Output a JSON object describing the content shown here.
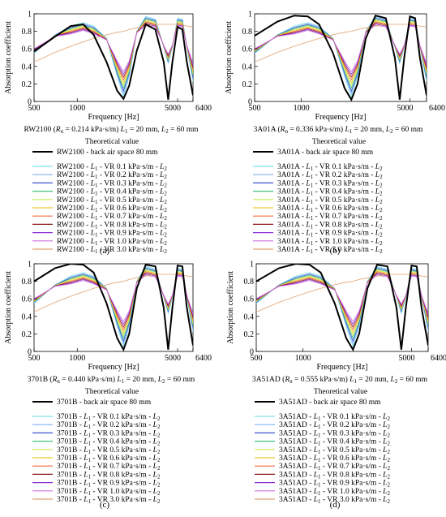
{
  "figure": {
    "panel_labels": [
      "(a)",
      "(b)",
      "(c)",
      "(d)"
    ],
    "legend_heading": "Theoretical value",
    "sweep_colors": [
      "#7fe3ea",
      "#80b4f2",
      "#3f51d4",
      "#41c57a",
      "#c9ec5a",
      "#efc92c",
      "#f06b3d",
      "#8e1f1f",
      "#8b2fd8",
      "#d16fe2",
      "#e3a06d"
    ]
  },
  "chart_data": [
    {
      "type": "line",
      "panel": "(a)",
      "material": "RW2100",
      "xlabel": "Frequency [Hz]",
      "ylabel": "Absorption coefficient",
      "xscale": "log",
      "xlim": [
        500,
        6400
      ],
      "ylim": [
        0,
        1
      ],
      "x_ticks": [
        "500",
        "1000",
        "5000",
        "6400"
      ],
      "y_ticks": [
        "0",
        "0.2",
        "0.4",
        "0.6",
        "0.8",
        "1"
      ],
      "grid": false,
      "legend_placement": "below",
      "caption_prefix": "RW2100 (",
      "rn_value": " = 0.214 kPa·s/m)",
      "caption_lengths": "L",
      "caption_tail": " = 20 mm, ",
      "caption_l2": " = 60 mm",
      "theory_label": "RW2100 - back air space 80 mm",
      "series_labels": [
        {
          "pre": "RW2100 - ",
          "mid": " - VR 0.1 kPa·s/m - "
        },
        {
          "pre": "RW2100 - ",
          "mid": " - VR 0.2 kPa·s/m - "
        },
        {
          "pre": "RW2100 - ",
          "mid": " - VR 0.3 kPa·s/m - "
        },
        {
          "pre": "RW2100 - ",
          "mid": " - VR 0.4 kPa·s/m - "
        },
        {
          "pre": "RW2100 - ",
          "mid": " - VR 0.5 kPa·s/m - "
        },
        {
          "pre": "RW2100 - ",
          "mid": " - VR 0.6 kPa·s/m - "
        },
        {
          "pre": "RW2100 - ",
          "mid": " - VR 0.7 kPa·s/m - "
        },
        {
          "pre": "RW2100 - ",
          "mid": " - VR 0.8 kPa·s/m - "
        },
        {
          "pre": "RW2100 - ",
          "mid": " - VR 0.9 kPa·s/m - "
        },
        {
          "pre": "RW2100 - ",
          "mid": " - VR 1.0 kPa·s/m - "
        },
        {
          "pre": "RW2100 - ",
          "mid": " - VR 3.0 kPa·s/m - "
        }
      ],
      "theory_curve": {
        "x": [
          500,
          700,
          900,
          1100,
          1300,
          1600,
          1900,
          2100,
          2300,
          2600,
          3000,
          3500,
          4000,
          4300,
          4600,
          5000,
          5400,
          5800,
          6400
        ],
        "y": [
          0.57,
          0.74,
          0.86,
          0.88,
          0.76,
          0.45,
          0.12,
          0.03,
          0.18,
          0.58,
          0.88,
          0.82,
          0.45,
          0.02,
          0.45,
          0.85,
          0.82,
          0.45,
          0.07
        ]
      }
    },
    {
      "type": "line",
      "panel": "(b)",
      "material": "3A01A",
      "xlabel": "Frequency [Hz]",
      "ylabel": "Absorption coefficient",
      "xscale": "log",
      "xlim": [
        500,
        6400
      ],
      "ylim": [
        0,
        1
      ],
      "x_ticks": [
        "500",
        "1000",
        "5000",
        "6400"
      ],
      "y_ticks": [
        "0",
        "0.2",
        "0.4",
        "0.6",
        "0.8",
        "1"
      ],
      "grid": false,
      "legend_placement": "below",
      "caption_prefix": "3A01A (",
      "rn_value": " = 0.336 kPa·s/m)",
      "caption_lengths": "L",
      "caption_tail": " = 20 mm, ",
      "caption_l2": " = 60 mm",
      "theory_label": "3A01A - back air space 80 mm",
      "series_labels": [
        {
          "pre": "3A01A - ",
          "mid": " - VR 0.1 kPa·s/m - "
        },
        {
          "pre": "3A01A - ",
          "mid": " - VR 0.2 kPa·s/m - "
        },
        {
          "pre": "3A01A - ",
          "mid": " - VR 0.3 kPa·s/m - "
        },
        {
          "pre": "3A01A - ",
          "mid": " - VR 0.4 kPa·s/m - "
        },
        {
          "pre": "3A01A - ",
          "mid": " - VR 0.5 kPa·s/m - "
        },
        {
          "pre": "3A01A - ",
          "mid": " - VR 0.6 kPa·s/m - "
        },
        {
          "pre": "3A01A - ",
          "mid": " - VR 0.7 kPa·s/m - "
        },
        {
          "pre": "3A01A - ",
          "mid": " - VR 0.8 kPa·s/m - "
        },
        {
          "pre": "3A01A - ",
          "mid": " - VR 0.9 kPa·s/m - "
        },
        {
          "pre": "3A01A - ",
          "mid": " - VR 1.0 kPa·s/m - "
        },
        {
          "pre": "3A01A - ",
          "mid": " - VR 3.0 kPa·s/m - "
        }
      ],
      "theory_curve": {
        "x": [
          500,
          700,
          900,
          1100,
          1300,
          1600,
          1900,
          2100,
          2300,
          2600,
          3000,
          3500,
          4000,
          4300,
          4600,
          5000,
          5400,
          5800,
          6400
        ],
        "y": [
          0.75,
          0.91,
          0.98,
          0.97,
          0.88,
          0.55,
          0.15,
          0.02,
          0.2,
          0.72,
          0.98,
          0.95,
          0.5,
          0.02,
          0.5,
          0.97,
          0.95,
          0.5,
          0.07
        ]
      }
    },
    {
      "type": "line",
      "panel": "(c)",
      "material": "3701B",
      "xlabel": "Frequency [Hz]",
      "ylabel": "Absorption coefficient",
      "xscale": "log",
      "xlim": [
        500,
        6400
      ],
      "ylim": [
        0,
        1
      ],
      "x_ticks": [
        "500",
        "1000",
        "5000",
        "6400"
      ],
      "y_ticks": [
        "0",
        "0.2",
        "0.4",
        "0.6",
        "0.8",
        "1"
      ],
      "grid": false,
      "legend_placement": "below",
      "caption_prefix": "3701B (",
      "rn_value": " = 0.440 kPa·s/m)",
      "caption_lengths": "L",
      "caption_tail": " = 20 mm, ",
      "caption_l2": " = 60 mm",
      "theory_label": "3701B - back air space 80 mm",
      "series_labels": [
        {
          "pre": "3701B - ",
          "mid": " - VR 0.1 kPa·s/m - "
        },
        {
          "pre": "3701B - ",
          "mid": " - VR 0.2 kPa·s/m - "
        },
        {
          "pre": "3701B - ",
          "mid": " - VR 0.3 kPa·s/m - "
        },
        {
          "pre": "3701B - ",
          "mid": " - VR 0.4 kPa·s/m - "
        },
        {
          "pre": "3701B - ",
          "mid": " - VR 0.5 kPa·s/m - "
        },
        {
          "pre": "3701B - ",
          "mid": " - VR 0.6 kPa·s/m - "
        },
        {
          "pre": "3701B - ",
          "mid": " - VR 0.7 kPa·s/m - "
        },
        {
          "pre": "3701B - ",
          "mid": " - VR 0.8 kPa·s/m - "
        },
        {
          "pre": "3701B - ",
          "mid": " - VR 0.9 kPa·s/m - "
        },
        {
          "pre": "3701B - ",
          "mid": " - VR 1.0 kPa·s/m - "
        },
        {
          "pre": "3701B - ",
          "mid": " - VR 3.0 kPa·s/m - "
        }
      ],
      "theory_curve": {
        "x": [
          500,
          700,
          900,
          1100,
          1300,
          1600,
          1900,
          2100,
          2300,
          2600,
          3000,
          3500,
          4000,
          4300,
          4600,
          5000,
          5400,
          5800,
          6400
        ],
        "y": [
          0.8,
          0.95,
          1.0,
          0.99,
          0.9,
          0.55,
          0.15,
          0.02,
          0.2,
          0.72,
          0.99,
          0.97,
          0.5,
          0.02,
          0.5,
          0.98,
          0.97,
          0.5,
          0.07
        ]
      }
    },
    {
      "type": "line",
      "panel": "(d)",
      "material": "3A51AD",
      "xlabel": "Frequency [Hz]",
      "ylabel": "Absorption coefficient",
      "xscale": "log",
      "xlim": [
        500,
        6400
      ],
      "ylim": [
        0,
        1
      ],
      "x_ticks": [
        "500",
        "1000",
        "5000",
        "6400"
      ],
      "y_ticks": [
        "0",
        "0.2",
        "0.4",
        "0.6",
        "0.8",
        "1"
      ],
      "grid": false,
      "legend_placement": "below",
      "caption_prefix": "3A51AD (",
      "rn_value": " = 0.555 kPa·s/m)",
      "caption_lengths": "L",
      "caption_tail": " = 20 mm, ",
      "caption_l2": " = 60 mm",
      "theory_label": "3A51AD - back air space 80 mm",
      "series_labels": [
        {
          "pre": "3A51AD - ",
          "mid": " - VR 0.1 kPa·s/m - "
        },
        {
          "pre": "3A51AD - ",
          "mid": " - VR 0.2 kPa·s/m - "
        },
        {
          "pre": "3A51AD - ",
          "mid": " - VR 0.3 kPa·s/m - "
        },
        {
          "pre": "3A51AD - ",
          "mid": " - VR 0.4 kPa·s/m - "
        },
        {
          "pre": "3A51AD - ",
          "mid": " - VR 0.5 kPa·s/m - "
        },
        {
          "pre": "3A51AD - ",
          "mid": " - VR 0.6 kPa·s/m - "
        },
        {
          "pre": "3A51AD - ",
          "mid": " - VR 0.7 kPa·s/m - "
        },
        {
          "pre": "3A51AD - ",
          "mid": " - VR 0.8 kPa·s/m - "
        },
        {
          "pre": "3A51AD - ",
          "mid": " - VR 0.9 kPa·s/m - "
        },
        {
          "pre": "3A51AD - ",
          "mid": " - VR 1.0 kPa·s/m - "
        },
        {
          "pre": "3A51AD - ",
          "mid": " - VR 3.0 kPa·s/m - "
        }
      ],
      "theory_curve": {
        "x": [
          500,
          700,
          900,
          1100,
          1300,
          1600,
          1900,
          2100,
          2300,
          2600,
          3000,
          3500,
          4000,
          4300,
          4600,
          5000,
          5400,
          5800,
          6400
        ],
        "y": [
          0.8,
          0.95,
          1.0,
          0.99,
          0.9,
          0.55,
          0.15,
          0.02,
          0.2,
          0.72,
          0.99,
          0.97,
          0.5,
          0.02,
          0.5,
          0.98,
          0.97,
          0.5,
          0.07
        ]
      }
    }
  ]
}
